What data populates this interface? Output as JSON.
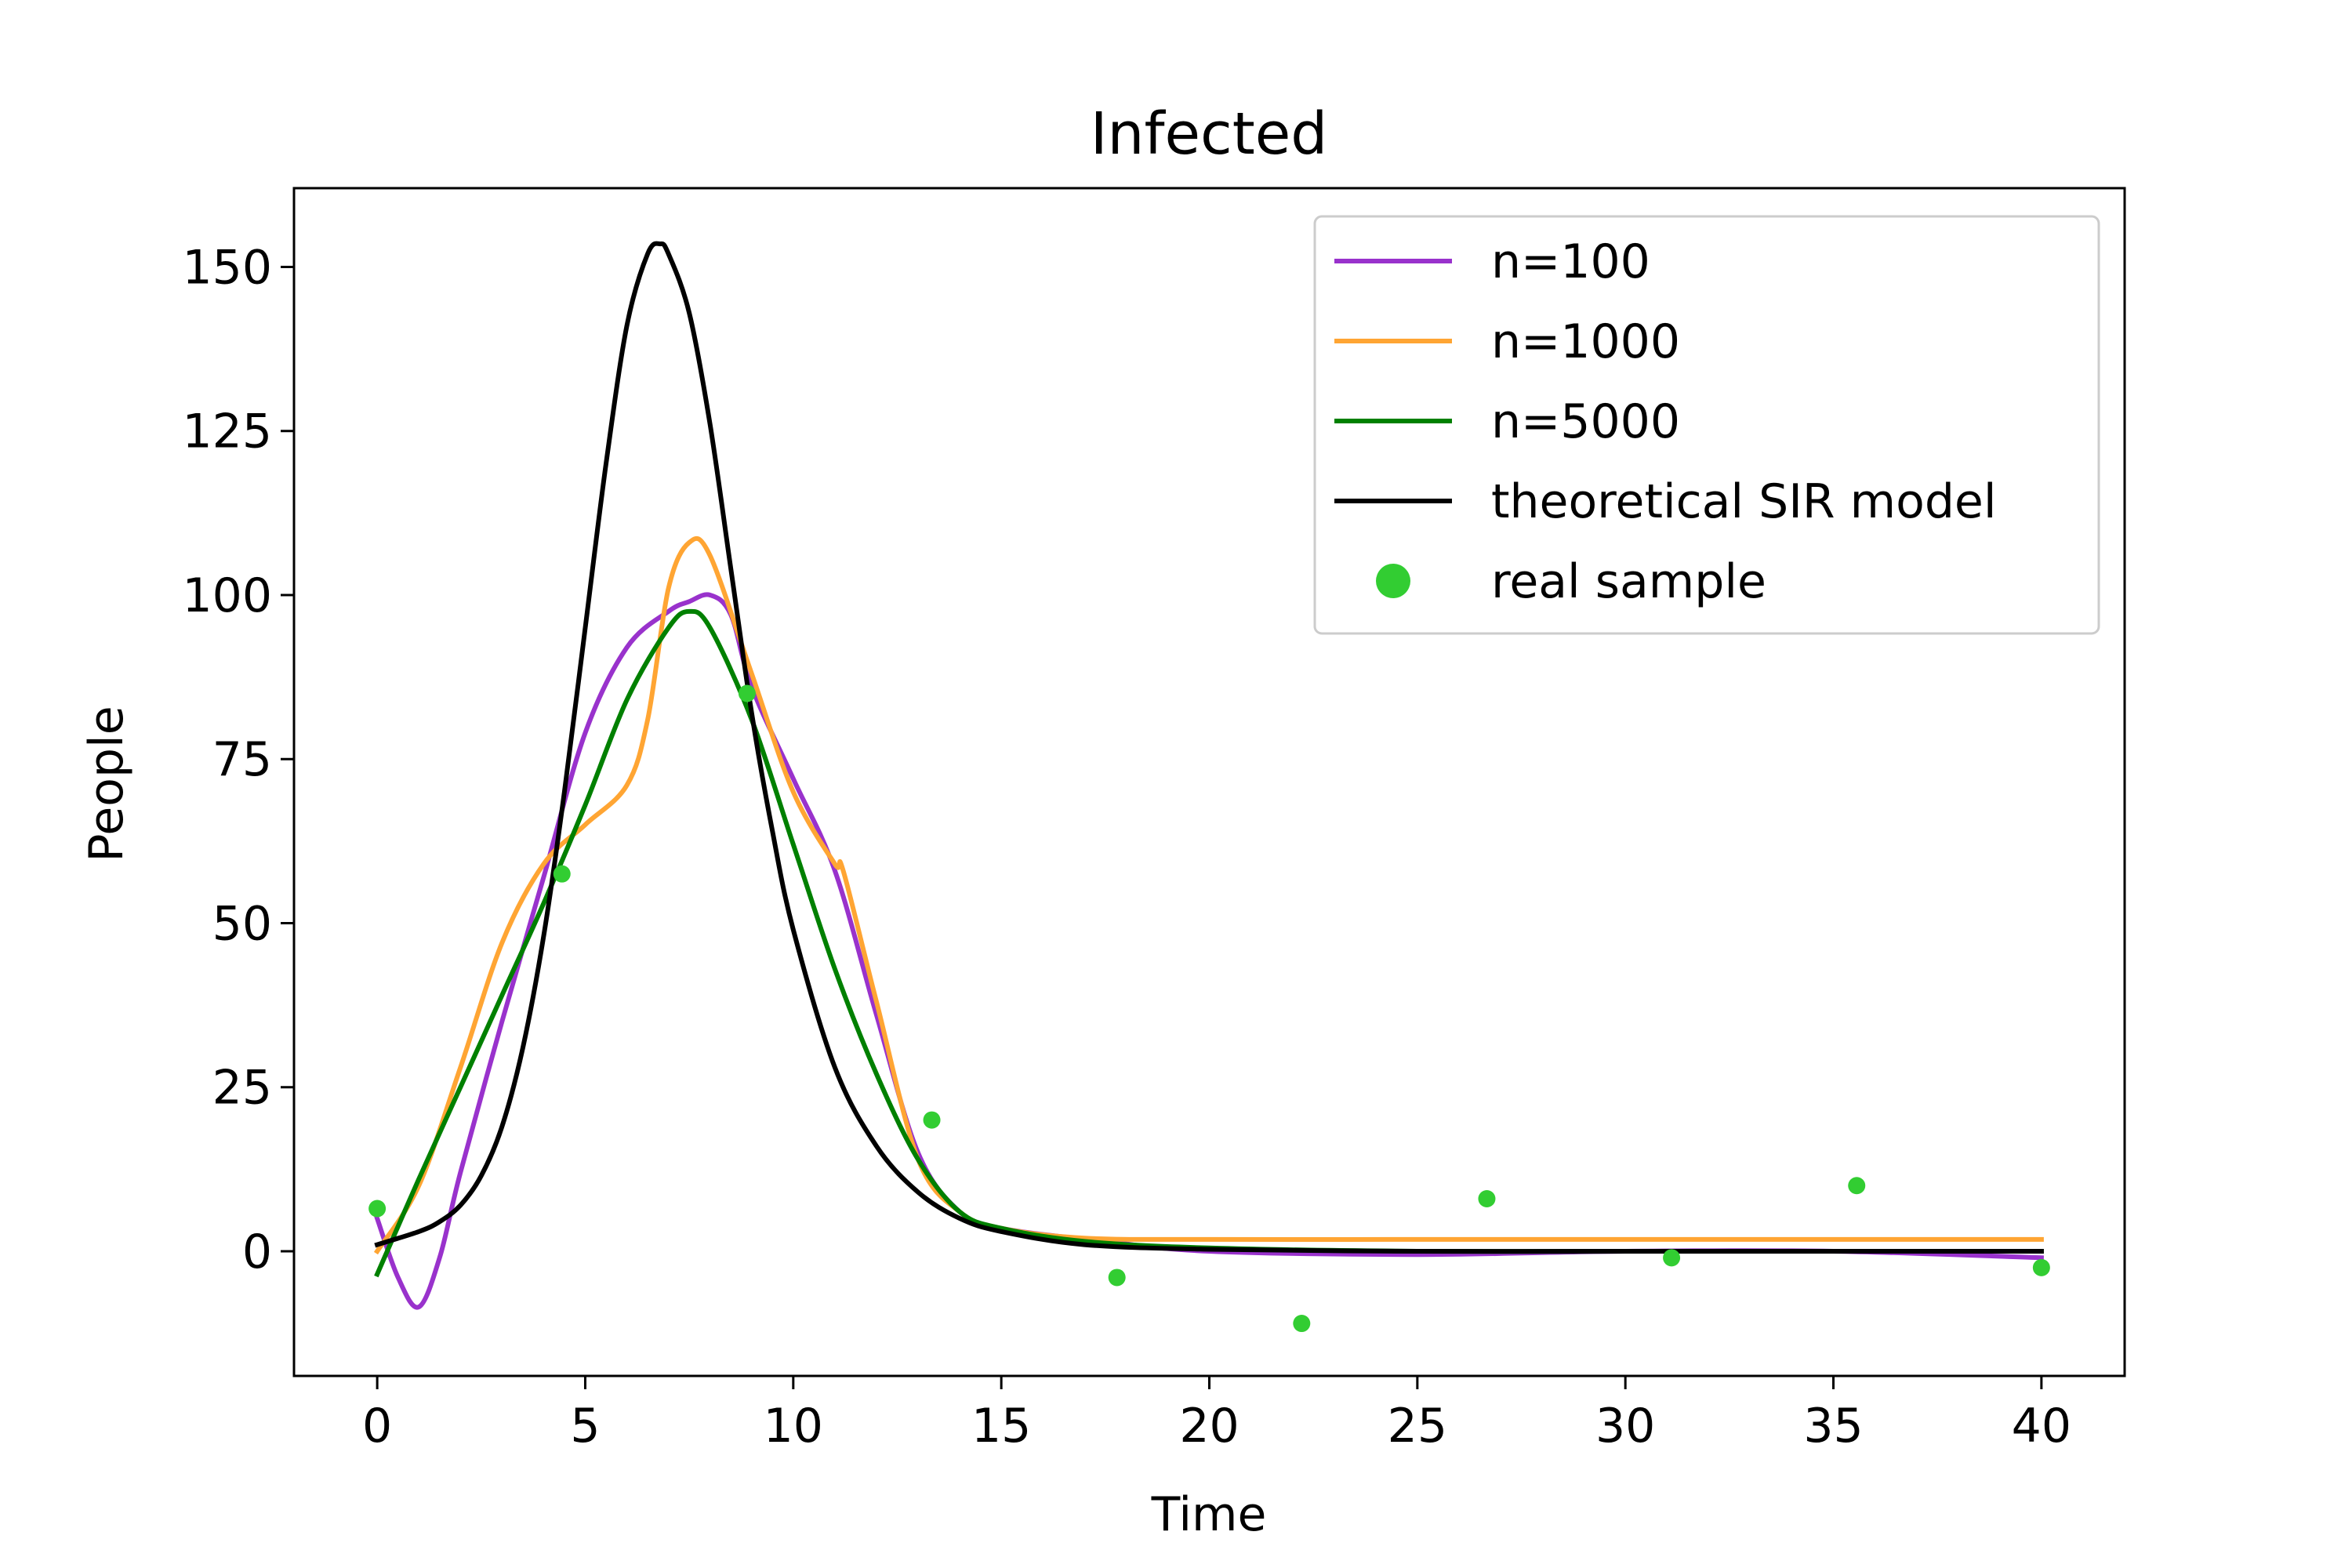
{
  "chart_data": {
    "type": "line",
    "title": "Infected",
    "xlabel": "Time",
    "ylabel": "People",
    "xlim": [
      -2,
      42
    ],
    "ylim": [
      -19,
      162
    ],
    "xticks": [
      0,
      5,
      10,
      15,
      20,
      25,
      30,
      35,
      40
    ],
    "yticks": [
      0,
      25,
      50,
      75,
      100,
      125,
      150
    ],
    "grid": false,
    "legend_position": "top-right",
    "series": [
      {
        "name": "n=100",
        "kind": "line",
        "color": "#9932CC",
        "x": [
          0,
          0.5,
          1,
          1.5,
          2,
          3,
          4,
          5,
          6,
          7,
          7.5,
          8,
          8.5,
          9,
          10,
          11,
          12,
          13,
          14,
          15,
          17.5,
          20,
          25,
          30,
          35,
          40
        ],
        "y": [
          5,
          -4,
          -8.5,
          -1,
          12,
          35,
          57,
          79,
          92,
          97.5,
          99,
          100,
          97,
          86,
          72,
          58,
          36,
          15,
          6,
          3.5,
          1.5,
          0,
          -0.5,
          0,
          0,
          -1
        ]
      },
      {
        "name": "n=1000",
        "kind": "line",
        "color": "#FFA533",
        "x": [
          0,
          1,
          2,
          3,
          4,
          5,
          6,
          6.5,
          7,
          7.5,
          8,
          9,
          10,
          11,
          11.2,
          12,
          13,
          14,
          15,
          17,
          20,
          25,
          30,
          35,
          40
        ],
        "y": [
          0,
          10,
          28,
          47,
          59,
          65,
          71,
          81,
          101,
          108,
          106,
          88,
          70,
          59,
          58,
          38,
          14,
          6,
          3.5,
          2,
          1.8,
          1.8,
          1.8,
          1.8,
          1.8
        ]
      },
      {
        "name": "n=5000",
        "kind": "line",
        "color": "#008000",
        "x": [
          0,
          1,
          2,
          3,
          4,
          5,
          6,
          7,
          7.5,
          8,
          9,
          10,
          11,
          12,
          13,
          14,
          15,
          17,
          20,
          25,
          30,
          35,
          40
        ],
        "y": [
          -3.5,
          11,
          25,
          39,
          53,
          68,
          84,
          95,
          97.5,
          95,
          81,
          62,
          43,
          27,
          14,
          6,
          3.5,
          1.5,
          0.5,
          0,
          0,
          0,
          0
        ]
      },
      {
        "name": "theoretical SIR model",
        "kind": "line",
        "color": "#000000",
        "x": [
          0,
          1,
          1.5,
          2,
          2.5,
          3,
          3.5,
          4,
          4.5,
          5,
          5.5,
          6,
          6.5,
          6.8,
          7,
          7.5,
          8,
          8.5,
          9,
          9.5,
          10,
          11,
          12,
          13,
          14,
          15,
          17,
          20,
          25,
          30,
          35,
          40
        ],
        "y": [
          1,
          3,
          4.5,
          7,
          11.5,
          19,
          31,
          48,
          70,
          95,
          120,
          141,
          152,
          153.5,
          152,
          143,
          126,
          104,
          82,
          64,
          49,
          28,
          16,
          9,
          5,
          3,
          1,
          0.3,
          0,
          0,
          0,
          0
        ]
      },
      {
        "name": "real sample",
        "kind": "scatter",
        "color": "#32CD32",
        "x": [
          0,
          4.44,
          8.89,
          13.33,
          17.78,
          22.22,
          26.67,
          31.11,
          35.56,
          40
        ],
        "y": [
          6.5,
          57.5,
          85,
          20,
          -4,
          -11,
          8,
          -1,
          10,
          -2.5
        ]
      }
    ]
  }
}
